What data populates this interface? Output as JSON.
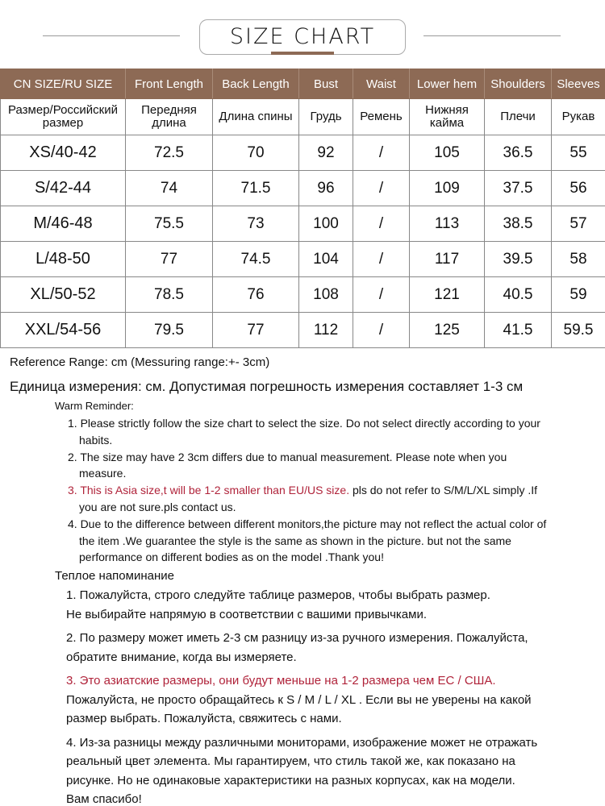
{
  "title": "SIZE CHART",
  "colors": {
    "header_bg": "#8d6a55",
    "warning": "#b0233a"
  },
  "table": {
    "headers": [
      "CN SIZE/RU SIZE",
      "Front Length",
      "Back Length",
      "Bust",
      "Waist",
      "Lower hem",
      "Shoulders",
      "Sleeves"
    ],
    "headers_ru": [
      "Размер/Российский размер",
      "Передняя длина",
      "Длина спины",
      "Грудь",
      "Ремень",
      "Нижняя кайма",
      "Плечи",
      "Рукав"
    ],
    "rows": [
      [
        "XS/40-42",
        "72.5",
        "70",
        "92",
        "/",
        "105",
        "36.5",
        "55"
      ],
      [
        "S/42-44",
        "74",
        "71.5",
        "96",
        "/",
        "109",
        "37.5",
        "56"
      ],
      [
        "M/46-48",
        "75.5",
        "73",
        "100",
        "/",
        "113",
        "38.5",
        "57"
      ],
      [
        "L/48-50",
        "77",
        "74.5",
        "104",
        "/",
        "117",
        "39.5",
        "58"
      ],
      [
        "XL/50-52",
        "78.5",
        "76",
        "108",
        "/",
        "121",
        "40.5",
        "59"
      ],
      [
        "XXL/54-56",
        "79.5",
        "77",
        "112",
        "/",
        "125",
        "41.5",
        "59.5"
      ]
    ]
  },
  "reference": "Reference Range: cm (Messuring range:+- 3cm)",
  "reference_ru": "Единица измерения: см. Допустимая погрешность измерения составляет 1-3 см",
  "warm_title": "Warm Reminder:",
  "en_items": [
    {
      "text": "1. Please strictly follow the size chart to select the size. Do not select directly according to your habits."
    },
    {
      "text": "2. The size may have 2 3cm differs due to manual measurement. Please note when you measure."
    },
    {
      "red": "3. This is Asia size,t will be 1-2 smaller than EU/US size.",
      "text": " pls do not refer to S/M/L/XL simply .If you are not sure.pls contact us."
    },
    {
      "text": "4. Due to the difference between different monitors,the picture may not reflect the actual color of the item .We guarantee the style is the same as shown in the picture. but not the same performance on different bodies as on the model .Thank you!"
    }
  ],
  "ru_title": "Теплое напоминание",
  "ru_items": [
    {
      "lines": [
        "1. Пожалуйста, строго следуйте таблице размеров, чтобы выбрать размер.",
        "Не выбирайте напрямую в соответствии с вашими привычками."
      ]
    },
    {
      "lines": [
        "2. По размеру может иметь 2-3 см разницу из-за ручного измерения. Пожалуйста,",
        "обратите внимание, когда вы измеряете."
      ]
    },
    {
      "red": "3. Это азиатские размеры, они будут меньше на 1-2 размера чем ЕС / США.",
      "lines": [
        "Пожалуйста, не просто обращайтесь к S / M / L / XL . Если вы не уверены на какой",
        "размер выбрать. Пожалуйста, свяжитесь с нами."
      ]
    },
    {
      "lines": [
        "4. Из-за разницы между различными мониторами, изображение может не отражать",
        "реальный цвет элемента. Мы гарантируем, что стиль такой же, как показано на",
        "рисунке. Но не одинаковые характеристики на разных корпусах, как на модели.",
        "Вам спасибо!"
      ]
    }
  ]
}
